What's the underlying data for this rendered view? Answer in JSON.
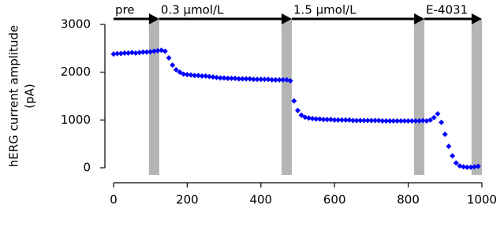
{
  "chart_data": {
    "type": "scatter",
    "y_label": [
      "hERG current amplitude",
      "(pA)"
    ],
    "xlim": [
      0,
      1000
    ],
    "xticks": [
      0,
      200,
      400,
      600,
      800,
      1000
    ],
    "ylim": [
      0,
      3000
    ],
    "yticks": [
      0,
      1000,
      2000,
      3000
    ],
    "shaded_regions": [
      [
        96,
        124
      ],
      [
        456,
        484
      ],
      [
        816,
        844
      ],
      [
        972,
        1000
      ]
    ],
    "shade_color": "#b4b4b4",
    "phases": [
      {
        "label": "pre",
        "start": 0,
        "end": 124
      },
      {
        "label": "0.3 μmol/L",
        "start": 124,
        "end": 484
      },
      {
        "label": "1.5 μmol/L",
        "start": 484,
        "end": 844
      },
      {
        "label": "E-4031",
        "start": 844,
        "end": 1000
      }
    ],
    "series": [
      {
        "color": "#0000ff",
        "x": [
          0,
          10,
          20,
          30,
          40,
          50,
          60,
          70,
          80,
          90,
          100,
          110,
          120,
          130,
          140,
          150,
          160,
          170,
          180,
          190,
          200,
          210,
          220,
          230,
          240,
          250,
          260,
          270,
          280,
          290,
          300,
          310,
          320,
          330,
          340,
          350,
          360,
          370,
          380,
          390,
          400,
          410,
          420,
          430,
          440,
          450,
          460,
          470,
          480,
          490,
          500,
          510,
          520,
          530,
          540,
          550,
          560,
          570,
          580,
          590,
          600,
          610,
          620,
          630,
          640,
          650,
          660,
          670,
          680,
          690,
          700,
          710,
          720,
          730,
          740,
          750,
          760,
          770,
          780,
          790,
          800,
          810,
          820,
          830,
          840,
          850,
          860,
          870,
          880,
          890,
          900,
          910,
          920,
          930,
          940,
          950,
          960,
          970,
          980,
          990
        ],
        "values": [
          2380,
          2390,
          2390,
          2400,
          2400,
          2410,
          2400,
          2410,
          2420,
          2420,
          2430,
          2440,
          2450,
          2460,
          2440,
          2300,
          2150,
          2050,
          2000,
          1960,
          1950,
          1940,
          1930,
          1930,
          1920,
          1920,
          1910,
          1900,
          1890,
          1880,
          1880,
          1870,
          1870,
          1870,
          1860,
          1860,
          1860,
          1860,
          1850,
          1850,
          1850,
          1850,
          1850,
          1840,
          1840,
          1840,
          1840,
          1840,
          1820,
          1400,
          1200,
          1100,
          1060,
          1040,
          1030,
          1020,
          1020,
          1010,
          1010,
          1010,
          1000,
          1000,
          1000,
          1000,
          1000,
          990,
          990,
          990,
          990,
          990,
          990,
          990,
          990,
          980,
          980,
          980,
          980,
          980,
          980,
          980,
          980,
          980,
          980,
          980,
          990,
          980,
          1000,
          1050,
          1130,
          950,
          700,
          450,
          250,
          100,
          40,
          20,
          10,
          10,
          20,
          30
        ]
      }
    ]
  }
}
